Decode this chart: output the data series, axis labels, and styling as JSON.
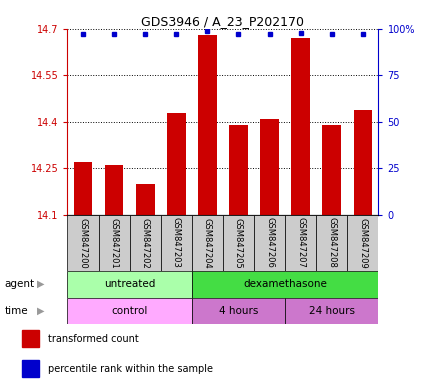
{
  "title": "GDS3946 / A_23_P202170",
  "samples": [
    "GSM847200",
    "GSM847201",
    "GSM847202",
    "GSM847203",
    "GSM847204",
    "GSM847205",
    "GSM847206",
    "GSM847207",
    "GSM847208",
    "GSM847209"
  ],
  "bar_values": [
    14.27,
    14.26,
    14.2,
    14.43,
    14.68,
    14.39,
    14.41,
    14.67,
    14.39,
    14.44
  ],
  "percentile_values": [
    97,
    97,
    97,
    97,
    99,
    97,
    97,
    98,
    97,
    97
  ],
  "ylim": [
    14.1,
    14.7
  ],
  "yticks": [
    14.1,
    14.25,
    14.4,
    14.55,
    14.7
  ],
  "ytick_labels": [
    "14.1",
    "14.25",
    "14.4",
    "14.55",
    "14.7"
  ],
  "right_ylim": [
    0,
    100
  ],
  "right_yticks": [
    0,
    25,
    50,
    75,
    100
  ],
  "right_ytick_labels": [
    "0",
    "25",
    "50",
    "75",
    "100%"
  ],
  "bar_color": "#cc0000",
  "dot_color": "#0000cc",
  "bar_width": 0.6,
  "agent_labels": [
    {
      "label": "untreated",
      "start": 0,
      "end": 4,
      "color": "#aaffaa"
    },
    {
      "label": "dexamethasone",
      "start": 4,
      "end": 10,
      "color": "#44dd44"
    }
  ],
  "time_labels": [
    {
      "label": "control",
      "start": 0,
      "end": 4,
      "color": "#ffaaff"
    },
    {
      "label": "4 hours",
      "start": 4,
      "end": 7,
      "color": "#dd88dd"
    },
    {
      "label": "24 hours",
      "start": 7,
      "end": 10,
      "color": "#dd88dd"
    }
  ],
  "legend_items": [
    {
      "color": "#cc0000",
      "label": "transformed count"
    },
    {
      "color": "#0000cc",
      "label": "percentile rank within the sample"
    }
  ],
  "left_axis_color": "#cc0000",
  "right_axis_color": "#0000cc",
  "bar_bottom": 14.1
}
